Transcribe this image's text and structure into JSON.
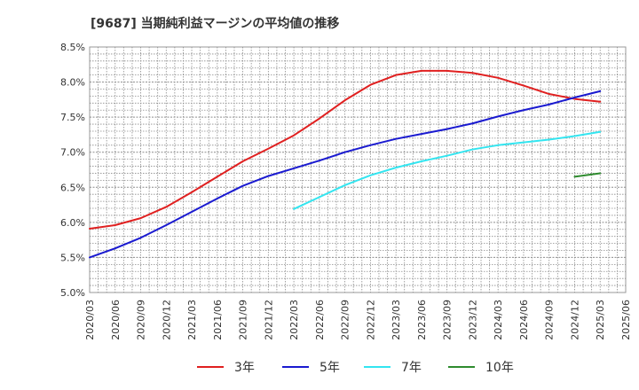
{
  "chart_data": {
    "type": "line",
    "title": "[9687]  当期純利益マージンの平均値の推移",
    "xlabel": "",
    "ylabel": "",
    "ylim": [
      5.0,
      8.5
    ],
    "y_ticks": [
      "5.0%",
      "5.5%",
      "6.0%",
      "6.5%",
      "7.0%",
      "7.5%",
      "8.0%",
      "8.5%"
    ],
    "categories": [
      "2020/03",
      "2020/06",
      "2020/09",
      "2020/12",
      "2021/03",
      "2021/06",
      "2021/09",
      "2021/12",
      "2022/03",
      "2022/06",
      "2022/09",
      "2022/12",
      "2023/03",
      "2023/06",
      "2023/09",
      "2023/12",
      "2024/03",
      "2024/06",
      "2024/09",
      "2024/12",
      "2025/03",
      "2025/06"
    ],
    "grid": true,
    "legend_position": "bottom",
    "series": [
      {
        "name": "3年",
        "color": "#e02020",
        "values": [
          5.91,
          5.96,
          6.06,
          6.22,
          6.43,
          6.65,
          6.87,
          7.05,
          7.24,
          7.48,
          7.74,
          7.96,
          8.1,
          8.16,
          8.16,
          8.13,
          8.06,
          7.95,
          7.83,
          7.76,
          7.72,
          null
        ]
      },
      {
        "name": "5年",
        "color": "#1a1ad0",
        "values": [
          5.5,
          5.63,
          5.78,
          5.96,
          6.15,
          6.34,
          6.52,
          6.66,
          6.77,
          6.88,
          7.0,
          7.1,
          7.19,
          7.26,
          7.33,
          7.41,
          7.51,
          7.6,
          7.68,
          7.78,
          7.87,
          null
        ]
      },
      {
        "name": "7年",
        "color": "#33e5f0",
        "values": [
          null,
          null,
          null,
          null,
          null,
          null,
          null,
          null,
          6.19,
          6.36,
          6.53,
          6.67,
          6.78,
          6.87,
          6.95,
          7.04,
          7.1,
          7.14,
          7.18,
          7.23,
          7.29,
          null
        ]
      },
      {
        "name": "10年",
        "color": "#2e8b2e",
        "values": [
          null,
          null,
          null,
          null,
          null,
          null,
          null,
          null,
          null,
          null,
          null,
          null,
          null,
          null,
          null,
          null,
          null,
          null,
          null,
          6.65,
          6.7,
          null
        ]
      }
    ]
  }
}
